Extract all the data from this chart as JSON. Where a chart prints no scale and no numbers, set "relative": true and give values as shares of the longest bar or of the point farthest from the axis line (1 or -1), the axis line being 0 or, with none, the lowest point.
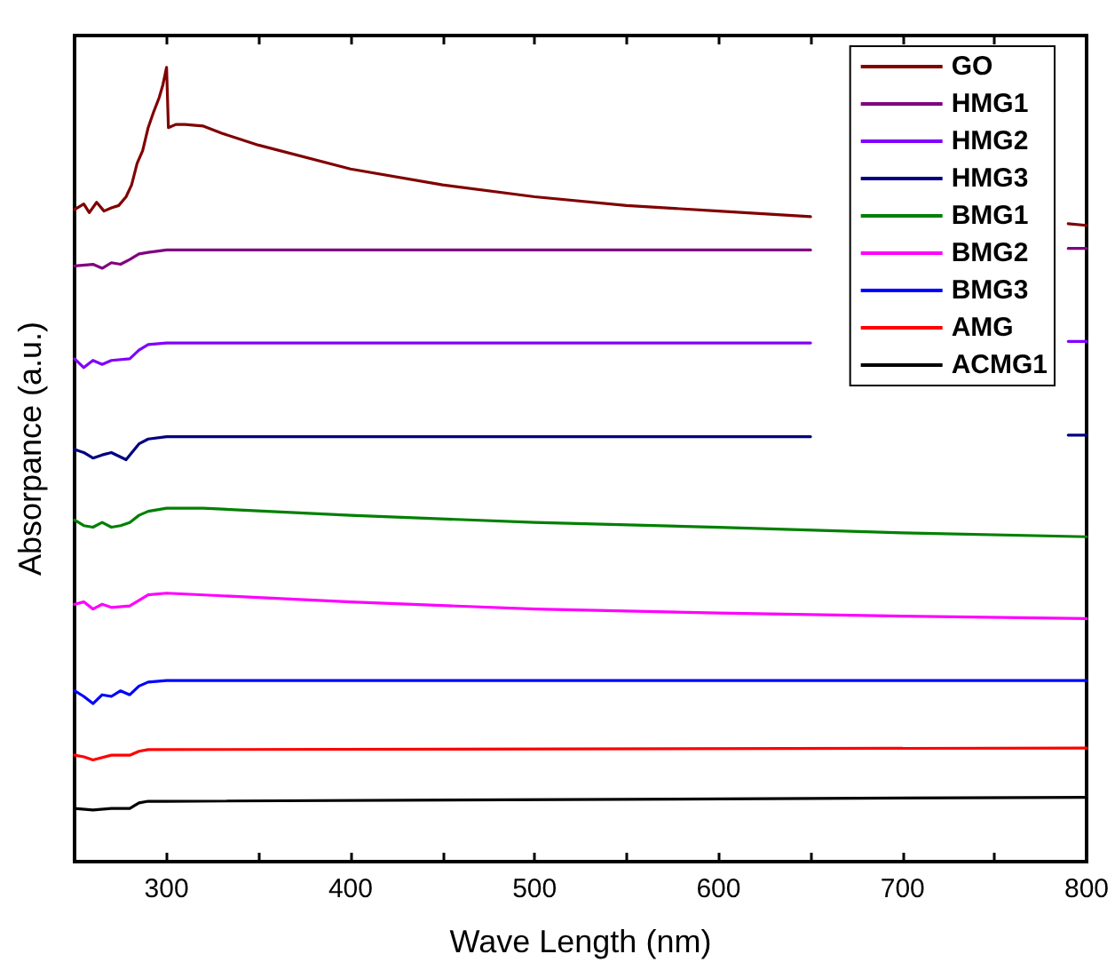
{
  "chart_data": {
    "type": "line",
    "xlabel": "Wave Length (nm)",
    "ylabel": "Absorpance (a.u.)",
    "relative": true,
    "xlim": [
      250,
      800
    ],
    "xticks": [
      {
        "value": 250,
        "label": null
      },
      300,
      {
        "value": 350,
        "label": null
      },
      400,
      {
        "value": 450,
        "label": null
      },
      500,
      {
        "value": 550,
        "label": null
      },
      600,
      {
        "value": 650,
        "label": null
      },
      700,
      {
        "value": 750,
        "label": null
      },
      800
    ],
    "grid": false,
    "legend": "top right",
    "marker": "none",
    "line_style": "solid",
    "series": [
      {
        "name": "GO",
        "color": "#800000",
        "x": [
          250,
          255,
          258,
          262,
          266,
          270,
          274,
          278,
          281,
          284,
          287,
          290,
          293,
          296,
          298,
          300,
          301,
          305,
          310,
          320,
          330,
          350,
          400,
          450,
          500,
          550,
          600,
          650,
          700,
          790,
          800
        ],
        "values": [
          0.821,
          0.828,
          0.817,
          0.83,
          0.819,
          0.823,
          0.826,
          0.837,
          0.852,
          0.879,
          0.895,
          0.924,
          0.944,
          0.962,
          0.978,
          1,
          0.924,
          0.928,
          0.928,
          0.926,
          0.917,
          0.902,
          0.872,
          0.852,
          0.837,
          0.826,
          0.819,
          0.812,
          null,
          0.803,
          0.801
        ]
      },
      {
        "name": "HMG1",
        "color": "#800080",
        "x": [
          250,
          260,
          265,
          270,
          275,
          280,
          285,
          290,
          300,
          400,
          500,
          600,
          650,
          700,
          790,
          800
        ],
        "values": [
          0.75,
          0.752,
          0.747,
          0.754,
          0.752,
          0.758,
          0.765,
          0.767,
          0.77,
          0.77,
          0.77,
          0.77,
          0.77,
          null,
          0.772,
          0.772
        ]
      },
      {
        "name": "HMG2",
        "color": "#8000ff",
        "x": [
          250,
          255,
          260,
          265,
          270,
          280,
          285,
          290,
          300,
          650,
          700,
          790,
          800
        ],
        "values": [
          0.633,
          0.622,
          0.631,
          0.626,
          0.631,
          0.633,
          0.644,
          0.651,
          0.653,
          0.653,
          null,
          0.655,
          0.655
        ]
      },
      {
        "name": "HMG3",
        "color": "#000080",
        "x": [
          250,
          255,
          260,
          265,
          270,
          278,
          285,
          290,
          300,
          650,
          700,
          790,
          800
        ],
        "values": [
          0.519,
          0.515,
          0.508,
          0.512,
          0.515,
          0.506,
          0.526,
          0.532,
          0.535,
          0.535,
          null,
          0.537,
          0.537
        ]
      },
      {
        "name": "BMG1",
        "color": "#008000",
        "x": [
          250,
          255,
          260,
          265,
          270,
          275,
          280,
          285,
          290,
          300,
          320,
          400,
          500,
          600,
          700,
          800
        ],
        "values": [
          0.43,
          0.423,
          0.421,
          0.427,
          0.421,
          0.423,
          0.427,
          0.436,
          0.441,
          0.445,
          0.445,
          0.436,
          0.427,
          0.421,
          0.414,
          0.409
        ]
      },
      {
        "name": "BMG2",
        "color": "#ff00ff",
        "x": [
          250,
          255,
          260,
          265,
          270,
          280,
          285,
          290,
          300,
          400,
          500,
          600,
          700,
          800
        ],
        "values": [
          0.324,
          0.327,
          0.318,
          0.324,
          0.32,
          0.322,
          0.329,
          0.336,
          0.338,
          0.327,
          0.318,
          0.313,
          0.309,
          0.306
        ]
      },
      {
        "name": "BMG3",
        "color": "#0000ff",
        "x": [
          250,
          255,
          260,
          265,
          270,
          275,
          280,
          285,
          290,
          300,
          800
        ],
        "values": [
          0.215,
          0.208,
          0.199,
          0.21,
          0.208,
          0.215,
          0.21,
          0.221,
          0.226,
          0.228,
          0.228
        ]
      },
      {
        "name": "AMG",
        "color": "#ff0000",
        "x": [
          250,
          255,
          260,
          270,
          280,
          285,
          290,
          800
        ],
        "values": [
          0.134,
          0.132,
          0.128,
          0.134,
          0.134,
          0.139,
          0.141,
          0.143
        ]
      },
      {
        "name": "ACMG1",
        "color": "#000000",
        "x": [
          250,
          260,
          270,
          280,
          285,
          290,
          300,
          800
        ],
        "values": [
          0.067,
          0.065,
          0.067,
          0.067,
          0.074,
          0.076,
          0.076,
          0.081
        ]
      }
    ]
  }
}
